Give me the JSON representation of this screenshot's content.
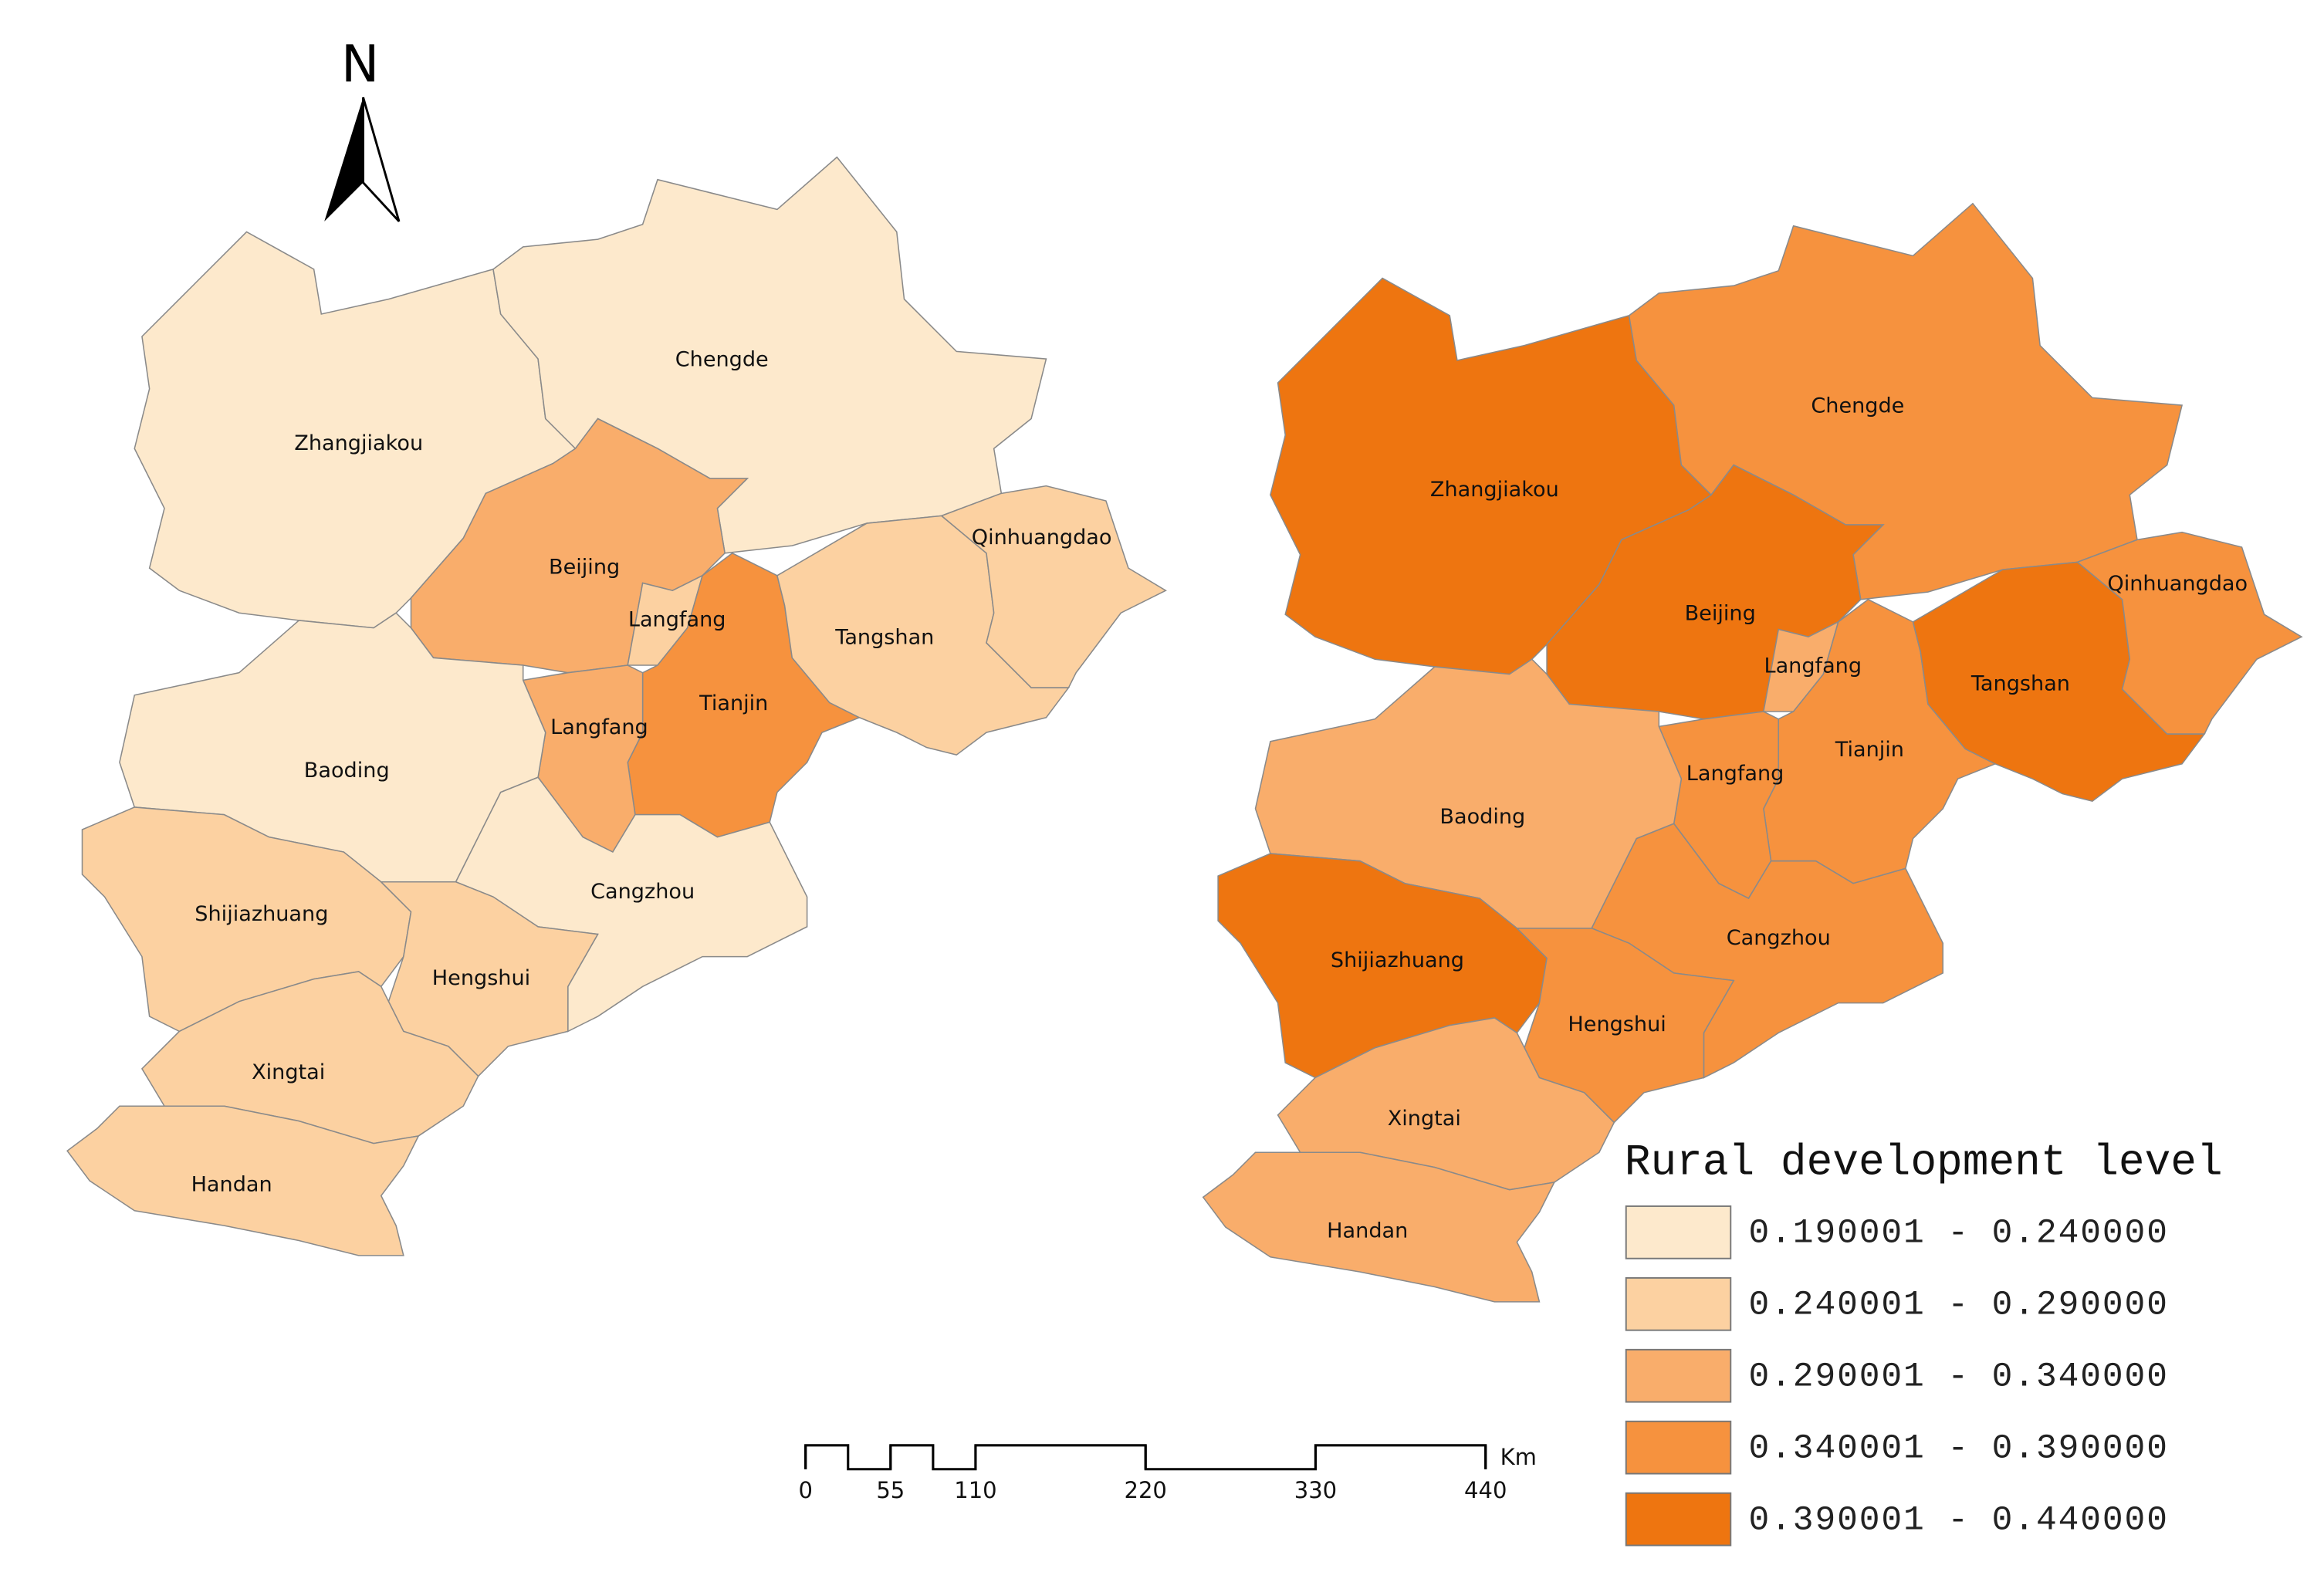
{
  "north": "N",
  "maps": [
    {
      "regions": [
        {
          "label": "Zhangjiakou",
          "color": "#fde9cc"
        },
        {
          "label": "Chengde",
          "color": "#fde9cc"
        },
        {
          "label": "Beijing",
          "color": "#f9ad6b"
        },
        {
          "label": "Langfang",
          "color": "#fcd1a1"
        },
        {
          "label": "Tianjin",
          "color": "#f6923e"
        },
        {
          "label": "Langfang",
          "color": "#f9ad6b"
        },
        {
          "label": "Tangshan",
          "color": "#fcd1a1"
        },
        {
          "label": "Qinhuangdao",
          "color": "#fcd1a1"
        },
        {
          "label": "Baoding",
          "color": "#fde9cc"
        },
        {
          "label": "Cangzhou",
          "color": "#fde9cc"
        },
        {
          "label": "Shijiazhuang",
          "color": "#fcd1a1"
        },
        {
          "label": "Hengshui",
          "color": "#fcd1a1"
        },
        {
          "label": "Xingtai",
          "color": "#fcd1a1"
        },
        {
          "label": "Handan",
          "color": "#fcd1a1"
        }
      ]
    },
    {
      "regions": [
        {
          "label": "Zhangjiakou",
          "color": "#ee7510"
        },
        {
          "label": "Chengde",
          "color": "#f6923e"
        },
        {
          "label": "Beijing",
          "color": "#ee7510"
        },
        {
          "label": "Langfang",
          "color": "#f9ad6b"
        },
        {
          "label": "Tianjin",
          "color": "#f6923e"
        },
        {
          "label": "Langfang",
          "color": "#f6923e"
        },
        {
          "label": "Tangshan",
          "color": "#ee7510"
        },
        {
          "label": "Qinhuangdao",
          "color": "#f6923e"
        },
        {
          "label": "Baoding",
          "color": "#f9ad6b"
        },
        {
          "label": "Cangzhou",
          "color": "#f6923e"
        },
        {
          "label": "Shijiazhuang",
          "color": "#ee7510"
        },
        {
          "label": "Hengshui",
          "color": "#f6923e"
        },
        {
          "label": "Xingtai",
          "color": "#f9ad6b"
        },
        {
          "label": "Handan",
          "color": "#f9ad6b"
        }
      ]
    }
  ],
  "legend": {
    "title": "Rural development level",
    "classes": [
      {
        "label": "0.190001 - 0.240000",
        "color": "#fde9cc"
      },
      {
        "label": "0.240001 - 0.290000",
        "color": "#fcd1a1"
      },
      {
        "label": "0.290001 - 0.340000",
        "color": "#f9ad6b"
      },
      {
        "label": "0.340001 - 0.390000",
        "color": "#f6923e"
      },
      {
        "label": "0.390001 - 0.440000",
        "color": "#ee7510"
      }
    ]
  },
  "scale_bar": {
    "unit": "Km",
    "ticks": [
      0,
      55,
      110,
      220,
      330,
      440
    ]
  }
}
